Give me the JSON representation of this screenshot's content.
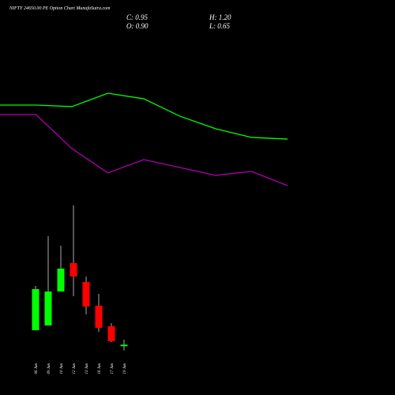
{
  "chart_data": {
    "type": "candlestick",
    "title": "NIFTY 24650.00  PE Option  Chart MunafaSutra.com",
    "info": [
      "C: 0.95",
      "H: 1.20",
      "O: 0.90",
      "L: 0.65"
    ],
    "categories": [
      "06 Jun",
      "09 Jun",
      "10 Jun",
      "12 Jun",
      "13 Jun",
      "16 Jun",
      "17 Jun",
      "19 Jun"
    ],
    "open": [
      1.68,
      1.92,
      3.64,
      5.08,
      4.12,
      2.92,
      1.88,
      0.9
    ],
    "high": [
      3.92,
      6.44,
      5.96,
      8.0,
      4.4,
      3.52,
      2.04,
      1.2
    ],
    "low": [
      1.68,
      1.92,
      3.64,
      3.4,
      2.48,
      1.6,
      1.08,
      0.65
    ],
    "close": [
      3.76,
      3.64,
      4.8,
      4.4,
      2.88,
      1.8,
      1.12,
      0.95
    ],
    "up_color": "#00ff00",
    "down_color": "#ff0000",
    "ylim": [
      0,
      8
    ],
    "x": [
      0,
      1,
      2,
      3,
      4,
      5,
      6,
      7,
      8
    ],
    "xlim": [
      0,
      8
    ],
    "y2lim": [
      0,
      10
    ],
    "series": [
      {
        "color": "#00ff00",
        "axis": "y2",
        "values": [
          7.8,
          7.8,
          7.67,
          8.8,
          8.33,
          6.87,
          5.8,
          5.07,
          4.93
        ]
      },
      {
        "color": "#b000b0",
        "axis": "y2",
        "values": [
          7.0,
          7.0,
          4.13,
          2.07,
          3.2,
          2.53,
          1.87,
          2.2,
          1.0
        ]
      }
    ]
  }
}
